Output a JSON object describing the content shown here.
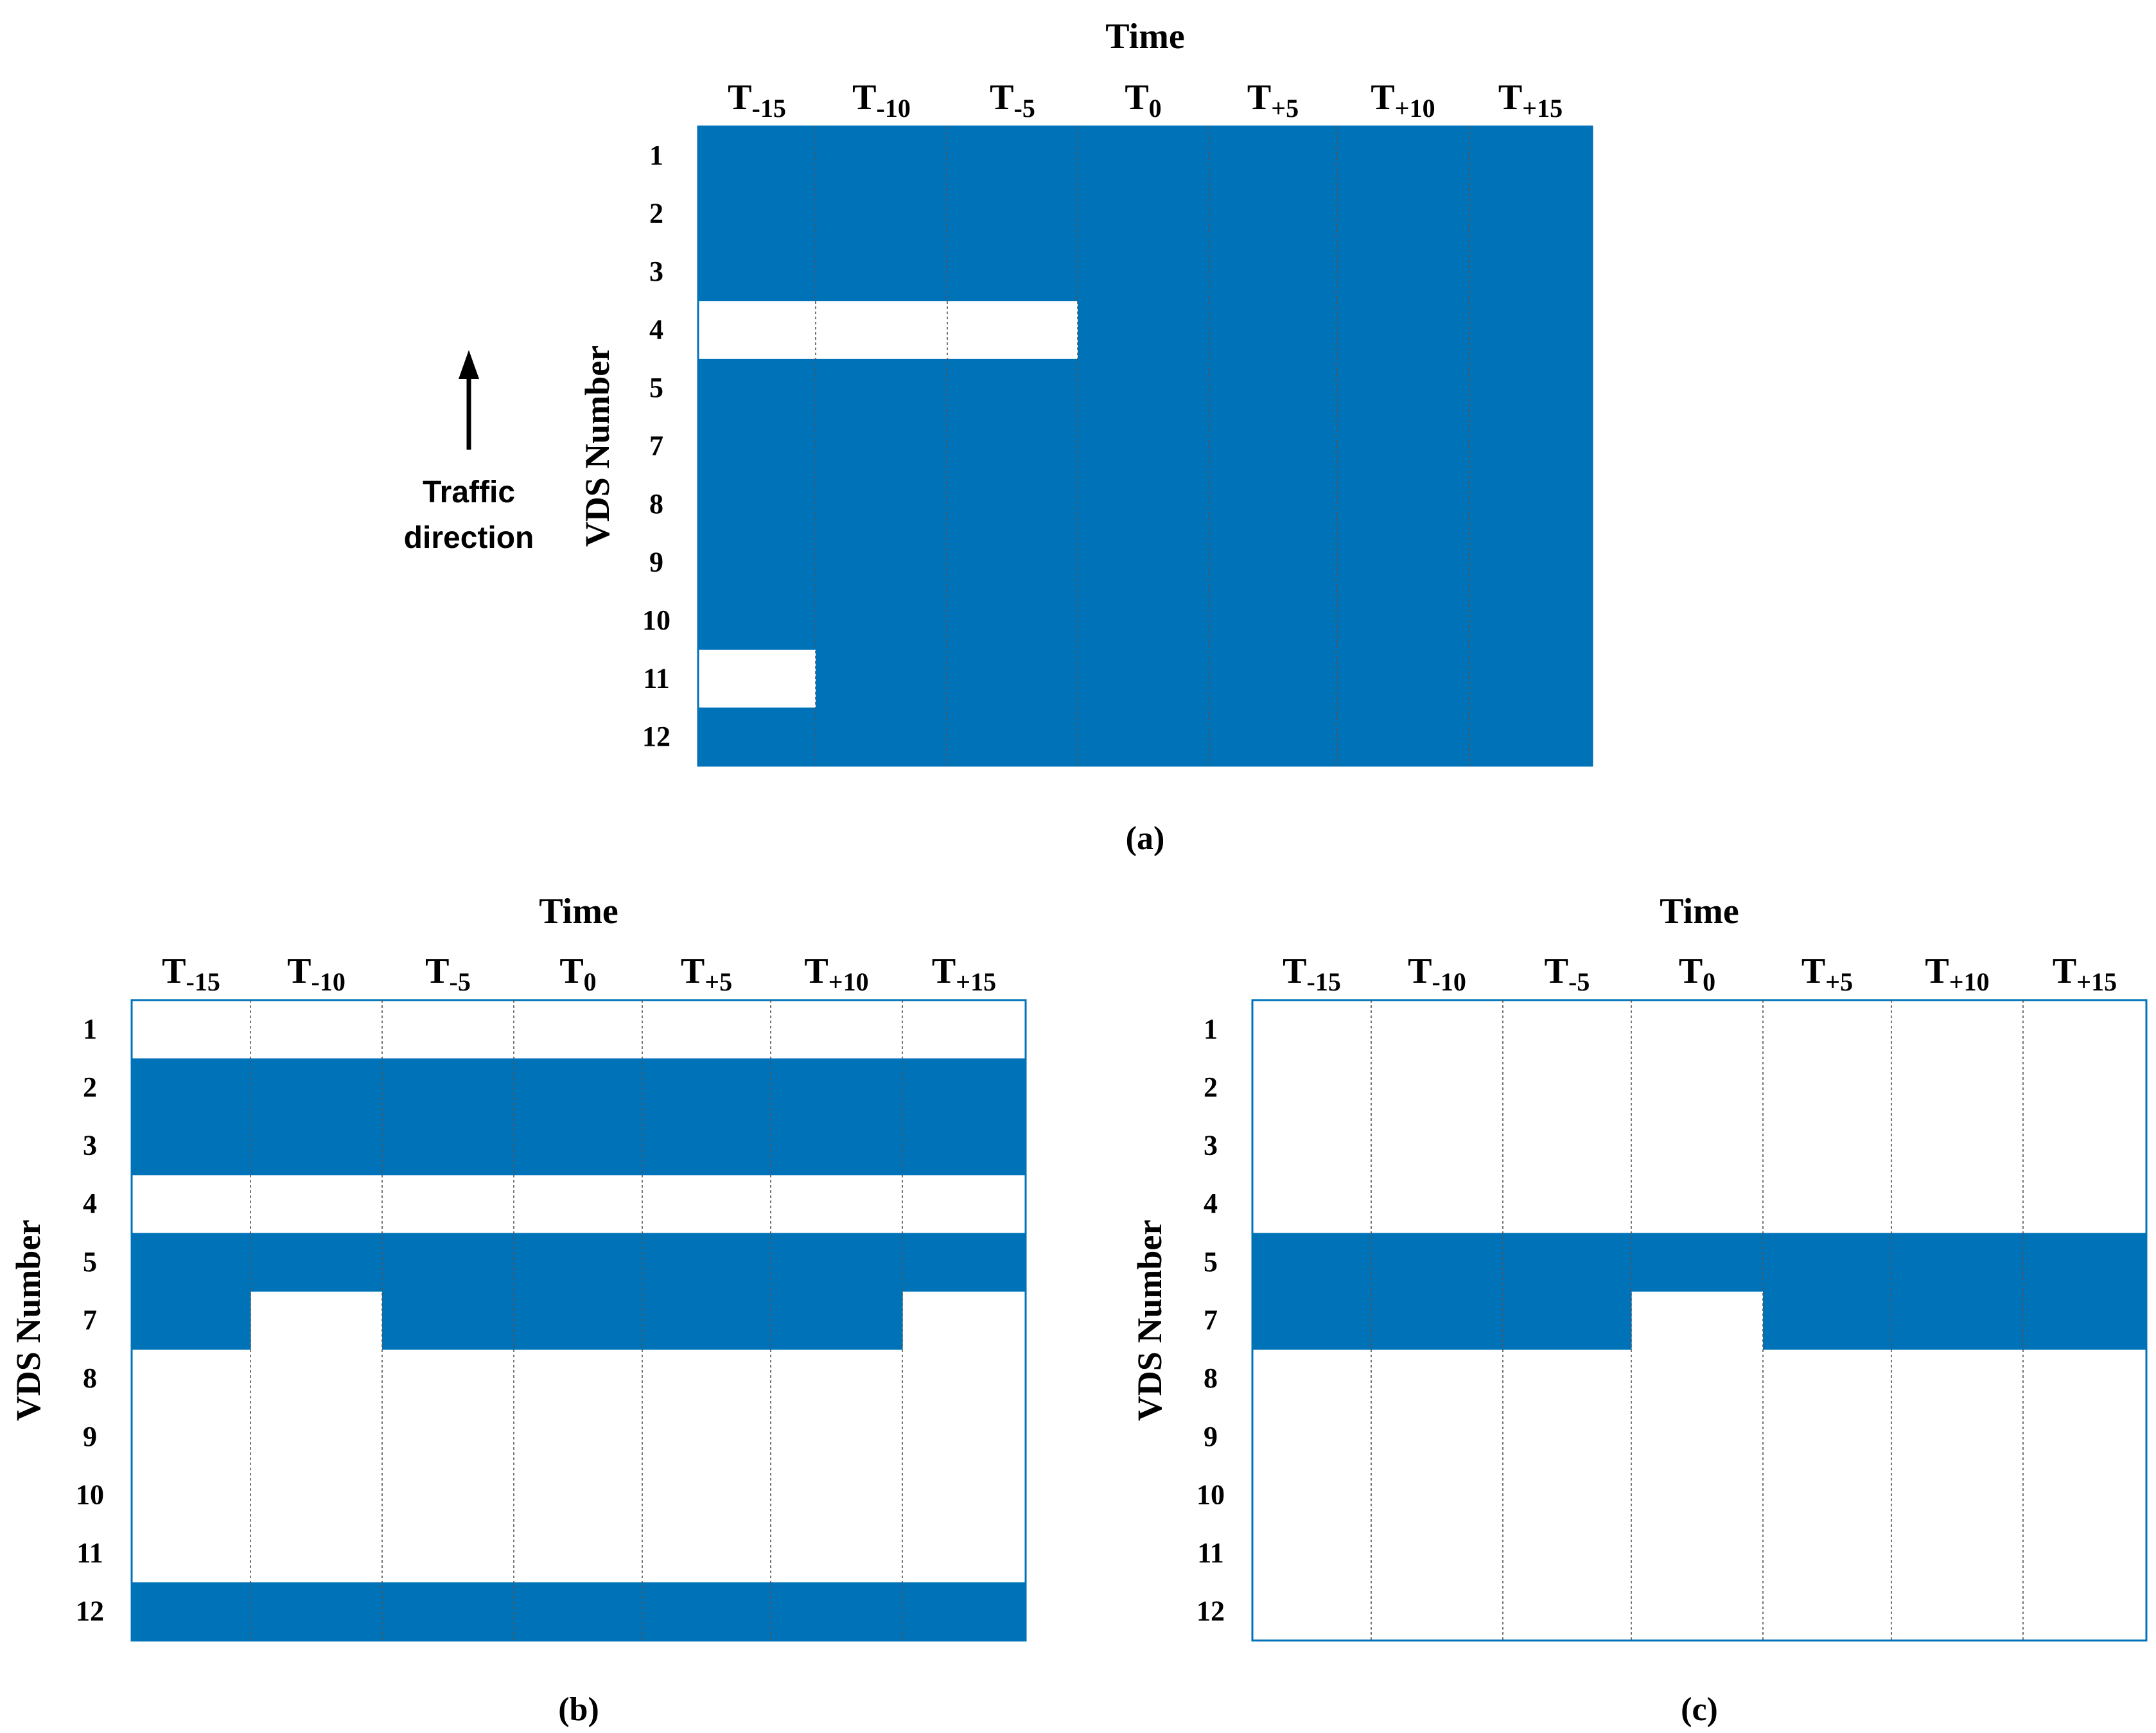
{
  "colors": {
    "fill": "#0072B8",
    "empty": "#FFFFFF",
    "gridline": "#555555",
    "text": "#000000"
  },
  "annotation": {
    "label_line1": "Traffic",
    "label_line2": "direction",
    "icon": "arrow-up-icon"
  },
  "chart_data": [
    {
      "type": "heatmap",
      "panel": "a",
      "caption": "(a)",
      "title": "Time",
      "xlabel": "Time",
      "ylabel": "VDS Number",
      "x": [
        {
          "base": "T",
          "sub": "-15"
        },
        {
          "base": "T",
          "sub": "-10"
        },
        {
          "base": "T",
          "sub": "-5"
        },
        {
          "base": "T",
          "sub": "0"
        },
        {
          "base": "T",
          "sub": "+5"
        },
        {
          "base": "T",
          "sub": "+10"
        },
        {
          "base": "T",
          "sub": "+15"
        }
      ],
      "y": [
        "1",
        "2",
        "3",
        "4",
        "5",
        "7",
        "8",
        "9",
        "10",
        "11",
        "12"
      ],
      "values": [
        [
          1,
          1,
          1,
          1,
          1,
          1,
          1
        ],
        [
          1,
          1,
          1,
          1,
          1,
          1,
          1
        ],
        [
          1,
          1,
          1,
          1,
          1,
          1,
          1
        ],
        [
          0,
          0,
          0,
          1,
          1,
          1,
          1
        ],
        [
          1,
          1,
          1,
          1,
          1,
          1,
          1
        ],
        [
          1,
          1,
          1,
          1,
          1,
          1,
          1
        ],
        [
          1,
          1,
          1,
          1,
          1,
          1,
          1
        ],
        [
          1,
          1,
          1,
          1,
          1,
          1,
          1
        ],
        [
          1,
          1,
          1,
          1,
          1,
          1,
          1
        ],
        [
          0,
          1,
          1,
          1,
          1,
          1,
          1
        ],
        [
          1,
          1,
          1,
          1,
          1,
          1,
          1
        ]
      ]
    },
    {
      "type": "heatmap",
      "panel": "b",
      "caption": "(b)",
      "title": "Time",
      "xlabel": "Time",
      "ylabel": "VDS Number",
      "x": [
        {
          "base": "T",
          "sub": "-15"
        },
        {
          "base": "T",
          "sub": "-10"
        },
        {
          "base": "T",
          "sub": "-5"
        },
        {
          "base": "T",
          "sub": "0"
        },
        {
          "base": "T",
          "sub": "+5"
        },
        {
          "base": "T",
          "sub": "+10"
        },
        {
          "base": "T",
          "sub": "+15"
        }
      ],
      "y": [
        "1",
        "2",
        "3",
        "4",
        "5",
        "7",
        "8",
        "9",
        "10",
        "11",
        "12"
      ],
      "values": [
        [
          0,
          0,
          0,
          0,
          0,
          0,
          0
        ],
        [
          1,
          1,
          1,
          1,
          1,
          1,
          1
        ],
        [
          1,
          1,
          1,
          1,
          1,
          1,
          1
        ],
        [
          0,
          0,
          0,
          0,
          0,
          0,
          0
        ],
        [
          1,
          1,
          1,
          1,
          1,
          1,
          1
        ],
        [
          1,
          0,
          1,
          1,
          1,
          1,
          0
        ],
        [
          0,
          0,
          0,
          0,
          0,
          0,
          0
        ],
        [
          0,
          0,
          0,
          0,
          0,
          0,
          0
        ],
        [
          0,
          0,
          0,
          0,
          0,
          0,
          0
        ],
        [
          0,
          0,
          0,
          0,
          0,
          0,
          0
        ],
        [
          1,
          1,
          1,
          1,
          1,
          1,
          1
        ]
      ]
    },
    {
      "type": "heatmap",
      "panel": "c",
      "caption": "(c)",
      "title": "Time",
      "xlabel": "Time",
      "ylabel": "VDS Number",
      "x": [
        {
          "base": "T",
          "sub": "-15"
        },
        {
          "base": "T",
          "sub": "-10"
        },
        {
          "base": "T",
          "sub": "-5"
        },
        {
          "base": "T",
          "sub": "0"
        },
        {
          "base": "T",
          "sub": "+5"
        },
        {
          "base": "T",
          "sub": "+10"
        },
        {
          "base": "T",
          "sub": "+15"
        }
      ],
      "y": [
        "1",
        "2",
        "3",
        "4",
        "5",
        "7",
        "8",
        "9",
        "10",
        "11",
        "12"
      ],
      "values": [
        [
          0,
          0,
          0,
          0,
          0,
          0,
          0
        ],
        [
          0,
          0,
          0,
          0,
          0,
          0,
          0
        ],
        [
          0,
          0,
          0,
          0,
          0,
          0,
          0
        ],
        [
          0,
          0,
          0,
          0,
          0,
          0,
          0
        ],
        [
          1,
          1,
          1,
          1,
          1,
          1,
          1
        ],
        [
          1,
          1,
          1,
          0,
          1,
          1,
          1
        ],
        [
          0,
          0,
          0,
          0,
          0,
          0,
          0
        ],
        [
          0,
          0,
          0,
          0,
          0,
          0,
          0
        ],
        [
          0,
          0,
          0,
          0,
          0,
          0,
          0
        ],
        [
          0,
          0,
          0,
          0,
          0,
          0,
          0
        ],
        [
          0,
          0,
          0,
          0,
          0,
          0,
          0
        ]
      ]
    }
  ]
}
